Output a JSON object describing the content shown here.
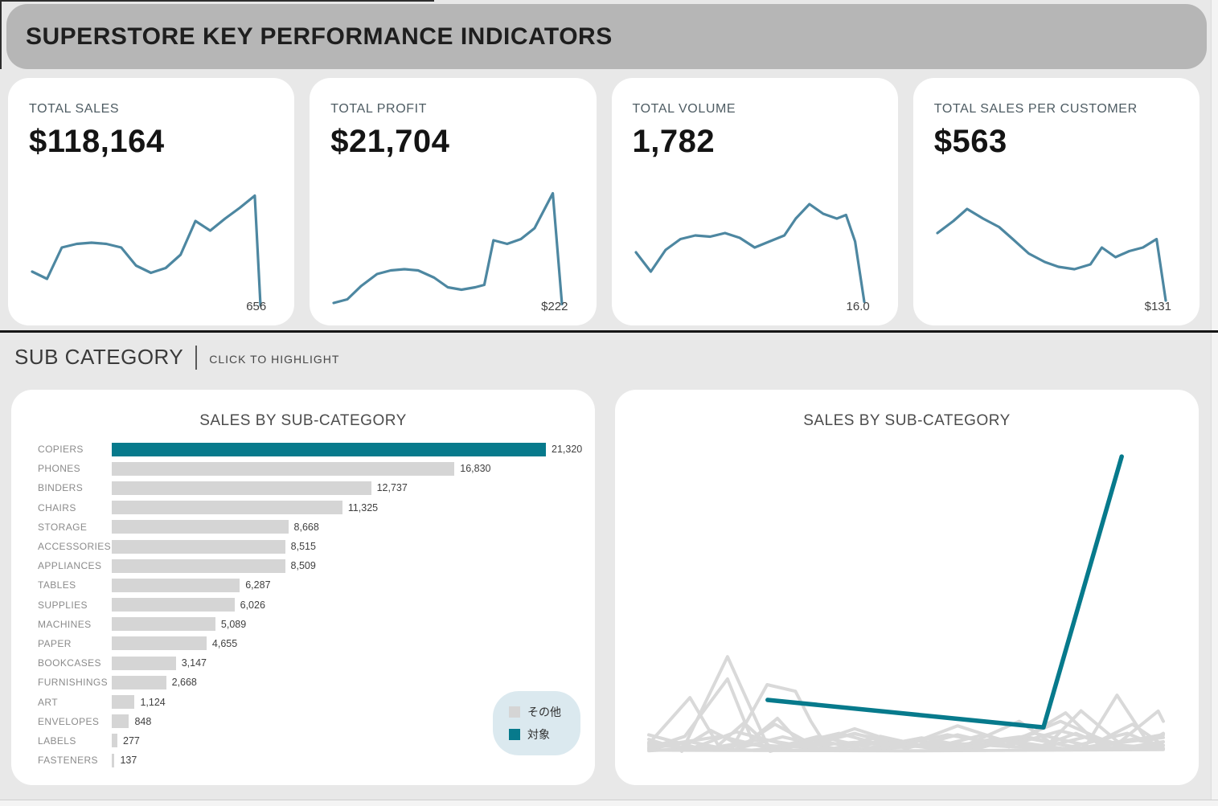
{
  "header": {
    "title": "SUPERSTORE KEY PERFORMANCE INDICATORS"
  },
  "colors": {
    "accent_teal": "#077a8c",
    "spark_blue": "#4d87a1",
    "bar_gray": "#d5d5d5",
    "line_gray": "#d9d9d9",
    "legend_bg": "#dbe9ef",
    "band_gray": "#b6b6b6"
  },
  "kpis": [
    {
      "label": "TOTAL SALES",
      "value": "$118,164",
      "end_label": "656",
      "sparkline": [
        [
          0,
          0.3
        ],
        [
          0.065,
          0.24
        ],
        [
          0.13,
          0.5
        ],
        [
          0.195,
          0.53
        ],
        [
          0.26,
          0.54
        ],
        [
          0.325,
          0.53
        ],
        [
          0.39,
          0.5
        ],
        [
          0.455,
          0.35
        ],
        [
          0.52,
          0.29
        ],
        [
          0.585,
          0.33
        ],
        [
          0.65,
          0.44
        ],
        [
          0.715,
          0.72
        ],
        [
          0.78,
          0.64
        ],
        [
          0.845,
          0.74
        ],
        [
          0.91,
          0.83
        ],
        [
          0.975,
          0.93
        ],
        [
          1,
          0.02
        ]
      ]
    },
    {
      "label": "TOTAL PROFIT",
      "value": "$21,704",
      "end_label": "$222",
      "sparkline": [
        [
          0,
          0.04
        ],
        [
          0.06,
          0.07
        ],
        [
          0.12,
          0.18
        ],
        [
          0.19,
          0.28
        ],
        [
          0.25,
          0.31
        ],
        [
          0.31,
          0.32
        ],
        [
          0.37,
          0.31
        ],
        [
          0.44,
          0.25
        ],
        [
          0.5,
          0.17
        ],
        [
          0.56,
          0.15
        ],
        [
          0.62,
          0.17
        ],
        [
          0.66,
          0.19
        ],
        [
          0.7,
          0.56
        ],
        [
          0.76,
          0.53
        ],
        [
          0.82,
          0.57
        ],
        [
          0.88,
          0.66
        ],
        [
          0.96,
          0.95
        ],
        [
          1,
          0.03
        ]
      ]
    },
    {
      "label": "TOTAL VOLUME",
      "value": "1,782",
      "end_label": "16.0",
      "sparkline": [
        [
          0,
          0.46
        ],
        [
          0.065,
          0.3
        ],
        [
          0.13,
          0.48
        ],
        [
          0.195,
          0.57
        ],
        [
          0.26,
          0.6
        ],
        [
          0.325,
          0.59
        ],
        [
          0.39,
          0.62
        ],
        [
          0.455,
          0.58
        ],
        [
          0.52,
          0.5
        ],
        [
          0.585,
          0.55
        ],
        [
          0.65,
          0.6
        ],
        [
          0.7,
          0.74
        ],
        [
          0.76,
          0.86
        ],
        [
          0.82,
          0.78
        ],
        [
          0.88,
          0.74
        ],
        [
          0.92,
          0.77
        ],
        [
          0.96,
          0.55
        ],
        [
          1,
          0.05
        ]
      ]
    },
    {
      "label": "TOTAL SALES PER CUSTOMER",
      "value": "$563",
      "end_label": "$131",
      "sparkline": [
        [
          0,
          0.62
        ],
        [
          0.07,
          0.72
        ],
        [
          0.13,
          0.82
        ],
        [
          0.2,
          0.74
        ],
        [
          0.27,
          0.67
        ],
        [
          0.33,
          0.57
        ],
        [
          0.4,
          0.45
        ],
        [
          0.47,
          0.38
        ],
        [
          0.53,
          0.34
        ],
        [
          0.6,
          0.32
        ],
        [
          0.67,
          0.36
        ],
        [
          0.72,
          0.5
        ],
        [
          0.78,
          0.42
        ],
        [
          0.84,
          0.47
        ],
        [
          0.9,
          0.5
        ],
        [
          0.96,
          0.57
        ],
        [
          1,
          0.06
        ]
      ]
    }
  ],
  "section": {
    "title": "SUB CATEGORY",
    "subtitle": "CLICK TO HIGHLIGHT"
  },
  "legend": {
    "items": [
      {
        "label": "その他",
        "color": "#d5d5d5"
      },
      {
        "label": "対象",
        "color": "#077a8c"
      }
    ]
  },
  "chart_data": [
    {
      "type": "bar",
      "title": "SALES BY SUB-CATEGORY",
      "orientation": "horizontal",
      "categories": [
        "COPIERS",
        "PHONES",
        "BINDERS",
        "CHAIRS",
        "STORAGE",
        "ACCESSORIES",
        "APPLIANCES",
        "TABLES",
        "SUPPLIES",
        "MACHINES",
        "PAPER",
        "BOOKCASES",
        "FURNISHINGS",
        "ART",
        "ENVELOPES",
        "LABELS",
        "FASTENERS"
      ],
      "values": [
        21320,
        16830,
        12737,
        11325,
        8668,
        8515,
        8509,
        6287,
        6026,
        5089,
        4655,
        3147,
        2668,
        1124,
        848,
        277,
        137
      ],
      "value_labels": [
        "21,320",
        "16,830",
        "12,737",
        "11,325",
        "8,668",
        "8,515",
        "8,509",
        "6,287",
        "6,026",
        "5,089",
        "4,655",
        "3,147",
        "2,668",
        "1,124",
        "848",
        "277",
        "137"
      ],
      "highlight_index": 0,
      "xlim": [
        0,
        21320
      ],
      "grid": false
    },
    {
      "type": "line",
      "title": "SALES BY SUB-CATEGORY",
      "highlight_series": {
        "name": "対象",
        "points": [
          [
            0.231,
            0.171
          ],
          [
            0.767,
            0.08
          ],
          [
            0.919,
            0.981
          ]
        ]
      },
      "background_series_name": "その他",
      "background_series": [
        [
          [
            0.064,
            0.0
          ],
          [
            0.153,
            0.315
          ],
          [
            0.236,
            0.0
          ],
          [
            0.32,
            0.04
          ],
          [
            0.42,
            0.005
          ],
          [
            0.52,
            0.035
          ],
          [
            0.63,
            0.01
          ],
          [
            0.73,
            0.05
          ],
          [
            0.82,
            0.015
          ],
          [
            0.93,
            0.06
          ],
          [
            1,
            0.01
          ]
        ],
        [
          [
            0,
            0.01
          ],
          [
            0.07,
            0.05
          ],
          [
            0.153,
            0.241
          ],
          [
            0.2,
            0.04
          ],
          [
            0.25,
            0.11
          ],
          [
            0.3,
            0.015
          ],
          [
            0.4,
            0.06
          ],
          [
            0.5,
            0.01
          ],
          [
            0.6,
            0.055
          ],
          [
            0.7,
            0.015
          ],
          [
            0.81,
            0.128
          ],
          [
            0.87,
            0.03
          ],
          [
            0.94,
            0.09
          ],
          [
            1,
            0.02
          ]
        ],
        [
          [
            0,
            0.025
          ],
          [
            0.08,
            0.179
          ],
          [
            0.135,
            0.02
          ],
          [
            0.185,
            0.095
          ],
          [
            0.24,
            0.01
          ],
          [
            0.33,
            0.05
          ],
          [
            0.43,
            0.012
          ],
          [
            0.53,
            0.045
          ],
          [
            0.64,
            0.01
          ],
          [
            0.75,
            0.06
          ],
          [
            0.85,
            0.02
          ],
          [
            0.91,
            0.187
          ],
          [
            0.97,
            0.03
          ],
          [
            1,
            0.06
          ]
        ],
        [
          [
            0.16,
            0.005
          ],
          [
            0.23,
            0.222
          ],
          [
            0.285,
            0.2
          ],
          [
            0.315,
            0.1
          ],
          [
            0.35,
            0.005
          ],
          [
            0.45,
            0.05
          ],
          [
            0.55,
            0.012
          ],
          [
            0.65,
            0.055
          ],
          [
            0.75,
            0.01
          ],
          [
            0.83,
            0.06
          ],
          [
            0.9,
            0.01
          ],
          [
            0.99,
            0.134
          ],
          [
            1,
            0.1
          ]
        ],
        [
          [
            0,
            0.04
          ],
          [
            0.06,
            0.008
          ],
          [
            0.12,
            0.07
          ],
          [
            0.18,
            0.018
          ],
          [
            0.245,
            0.09
          ],
          [
            0.315,
            0.025
          ],
          [
            0.4,
            0.075
          ],
          [
            0.5,
            0.02
          ],
          [
            0.6,
            0.085
          ],
          [
            0.7,
            0.03
          ],
          [
            0.8,
            0.1
          ],
          [
            0.9,
            0.025
          ],
          [
            1,
            0.055
          ]
        ],
        [
          [
            0,
            0.008
          ],
          [
            0.08,
            0.032
          ],
          [
            0.16,
            0.004
          ],
          [
            0.26,
            0.048
          ],
          [
            0.36,
            0.01
          ],
          [
            0.47,
            0.038
          ],
          [
            0.57,
            0.006
          ],
          [
            0.67,
            0.042
          ],
          [
            0.76,
            0.012
          ],
          [
            0.86,
            0.052
          ],
          [
            0.93,
            0.014
          ],
          [
            1,
            0.032
          ]
        ],
        [
          [
            0,
            0.055
          ],
          [
            0.09,
            0.014
          ],
          [
            0.17,
            0.065
          ],
          [
            0.27,
            0.02
          ],
          [
            0.37,
            0.06
          ],
          [
            0.47,
            0.014
          ],
          [
            0.58,
            0.055
          ],
          [
            0.7,
            0.02
          ],
          [
            0.8,
            0.068
          ],
          [
            0.9,
            0.026
          ],
          [
            1,
            0.046
          ]
        ],
        [
          [
            0,
            0.002
          ],
          [
            0.2,
            0.022
          ],
          [
            0.4,
            0.004
          ],
          [
            0.6,
            0.026
          ],
          [
            0.8,
            0.006
          ],
          [
            1,
            0.02
          ]
        ],
        [
          [
            0,
            0.014
          ],
          [
            0.14,
            0.05
          ],
          [
            0.25,
            0.004
          ],
          [
            0.4,
            0.058
          ],
          [
            0.55,
            0.01
          ],
          [
            0.72,
            0.048
          ],
          [
            0.85,
            0.008
          ],
          [
            1,
            0.056
          ]
        ],
        [
          [
            0,
            0.02
          ],
          [
            0.2,
            0.004
          ],
          [
            0.4,
            0.03
          ],
          [
            0.6,
            0.008
          ],
          [
            0.72,
            0.1
          ],
          [
            0.78,
            0.03
          ],
          [
            0.84,
            0.135
          ],
          [
            0.92,
            0.02
          ],
          [
            1,
            0.01
          ]
        ],
        [
          [
            0,
            0.004
          ],
          [
            0.5,
            0.002
          ],
          [
            1,
            0.006
          ]
        ],
        [
          [
            0,
            0.03
          ],
          [
            0.1,
            0.005
          ],
          [
            0.22,
            0.04
          ],
          [
            0.34,
            0.006
          ],
          [
            0.46,
            0.03
          ],
          [
            0.58,
            0.004
          ],
          [
            0.7,
            0.035
          ],
          [
            0.82,
            0.006
          ],
          [
            0.94,
            0.04
          ],
          [
            1,
            0.02
          ]
        ]
      ],
      "grid": false,
      "legend_position": "left-card"
    }
  ]
}
